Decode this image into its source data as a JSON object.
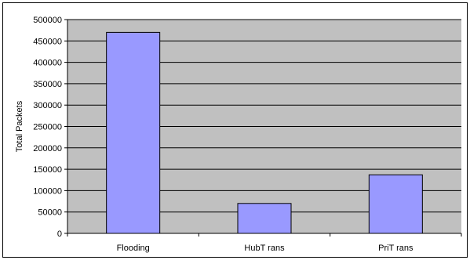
{
  "chart_data": {
    "type": "bar",
    "categories": [
      "Flooding",
      "HubT rans",
      "PriT rans"
    ],
    "values": [
      470000,
      70000,
      137000
    ],
    "title": "",
    "xlabel": "",
    "ylabel": "Total Packets",
    "ylim": [
      0,
      500000
    ],
    "yticks": [
      0,
      50000,
      100000,
      150000,
      200000,
      250000,
      300000,
      350000,
      400000,
      450000,
      500000
    ],
    "ytick_labels": [
      "0",
      "50000",
      "100000",
      "150000",
      "200000",
      "250000",
      "300000",
      "350000",
      "400000",
      "450000",
      "500000"
    ],
    "grid": true,
    "legend": "none",
    "colors": {
      "plot_background": "#c0c0c0",
      "bar_fill": "#9999ff",
      "bar_stroke": "#000000",
      "gridline": "#000000"
    }
  }
}
